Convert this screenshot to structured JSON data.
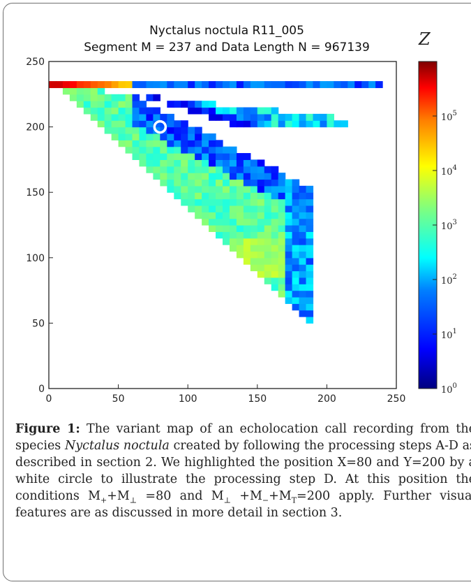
{
  "chart_data": {
    "type": "heatmap",
    "title": "Nyctalus noctula R11_005",
    "subtitle": "Segment M = 237 and Data Length N = 967139",
    "xlim": [
      0,
      250
    ],
    "ylim": [
      0,
      250
    ],
    "xticks": [
      "0",
      "50",
      "100",
      "150",
      "200",
      "250"
    ],
    "yticks": [
      "0",
      "50",
      "100",
      "150",
      "200",
      "250"
    ],
    "colorbar": {
      "label": "Z",
      "scale": "log",
      "range": [
        1,
        1000000
      ],
      "ticks": [
        {
          "base": "10",
          "exp": "0"
        },
        {
          "base": "10",
          "exp": "1"
        },
        {
          "base": "10",
          "exp": "2"
        },
        {
          "base": "10",
          "exp": "3"
        },
        {
          "base": "10",
          "exp": "4"
        },
        {
          "base": "10",
          "exp": "5"
        }
      ]
    },
    "colors": [
      "#00007f",
      "#0000ff",
      "#007fff",
      "#00ffff",
      "#7fff7f",
      "#ffff00",
      "#ff7f00",
      "#ff0000",
      "#7f0000"
    ],
    "highlight": {
      "x": 80,
      "y": 200
    }
  },
  "caption": {
    "label": "Figure 1:",
    "t1": " The variant map of an echolocation call recording from the species ",
    "species": "Nyctalus noctula",
    "t2": " created by following the processing steps A-D as described in section 2. We highlighted the position X=80 and Y=200 by a white circle to illustrate the processing step D. At this position the conditions M",
    "s1": "+",
    "t3": "+M",
    "s2": "⊥",
    "t4": " =80 and M",
    "s3": "⊥",
    "t5": " +M",
    "s4": "−",
    "t6": "+M",
    "s5": "T",
    "t7": "=200 apply. Further visual features are as discussed in more detail in section 3."
  }
}
